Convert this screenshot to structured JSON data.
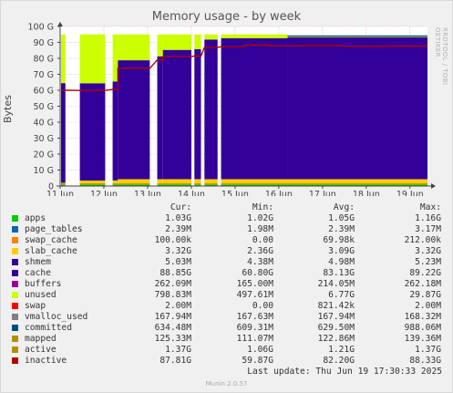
{
  "chart_data": {
    "type": "area",
    "title": "Memory usage - by week",
    "ylabel": "Bytes",
    "ylim": [
      0,
      100
    ],
    "yticks": [
      0,
      10,
      20,
      30,
      40,
      50,
      60,
      70,
      80,
      90,
      100
    ],
    "ytick_labels": [
      "0",
      "10 G",
      "20 G",
      "30 G",
      "40 G",
      "50 G",
      "60 G",
      "70 G",
      "80 G",
      "90 G",
      "100 G"
    ],
    "xlim": [
      0,
      8.4
    ],
    "xticks": [
      0,
      1,
      2,
      3,
      4,
      5,
      6,
      7,
      8
    ],
    "xtick_labels": [
      "11 Jun",
      "12 Jun",
      "13 Jun",
      "14 Jun",
      "15 Jun",
      "16 Jun",
      "17 Jun",
      "18 Jun",
      "19 Jun"
    ],
    "grid": true,
    "segments": [
      {
        "start": -0.1,
        "end": 0.12,
        "apps": 1.0,
        "slab": 1.0,
        "cache": 62.5,
        "unused": 30.5
      },
      {
        "start": 0.45,
        "end": 1.03,
        "apps": 1.0,
        "slab": 2.4,
        "cache": 61.0,
        "unused": 30.6
      },
      {
        "start": 1.2,
        "end": 1.32,
        "apps": 1.0,
        "slab": 2.5,
        "cache": 62.0,
        "unused": 29.5
      },
      {
        "start": 1.32,
        "end": 2.05,
        "apps": 1.0,
        "slab": 3.3,
        "cache": 74.5,
        "unused": 16.2
      },
      {
        "start": 2.22,
        "end": 2.35,
        "apps": 1.0,
        "slab": 3.3,
        "cache": 77.0,
        "unused": 13.7
      },
      {
        "start": 2.35,
        "end": 3.0,
        "apps": 1.0,
        "slab": 3.3,
        "cache": 81.0,
        "unused": 9.7
      },
      {
        "start": 3.07,
        "end": 3.22,
        "apps": 1.0,
        "slab": 3.3,
        "cache": 81.5,
        "unused": 9.2
      },
      {
        "start": 3.3,
        "end": 3.6,
        "apps": 1.0,
        "slab": 3.3,
        "cache": 87.5,
        "unused": 3.2
      },
      {
        "start": 3.68,
        "end": 5.2,
        "apps": 1.0,
        "slab": 3.3,
        "cache": 88.3,
        "unused": 2.4
      },
      {
        "start": 5.2,
        "end": 8.4,
        "apps": 1.0,
        "slab": 3.3,
        "cache": 89.0,
        "unused": 1.0
      }
    ],
    "series": [
      {
        "name": "apps",
        "color": "#00cc00",
        "cur": "1.03G",
        "min": "1.02G",
        "avg": "1.05G",
        "max": "1.16G"
      },
      {
        "name": "page_tables",
        "color": "#0066b3",
        "cur": "2.39M",
        "min": "1.98M",
        "avg": "2.39M",
        "max": "3.17M"
      },
      {
        "name": "swap_cache",
        "color": "#ff8000",
        "cur": "100.00k",
        "min": "0.00",
        "avg": "69.98k",
        "max": "212.00k"
      },
      {
        "name": "slab_cache",
        "color": "#ffcc00",
        "cur": "3.32G",
        "min": "2.36G",
        "avg": "3.09G",
        "max": "3.32G"
      },
      {
        "name": "shmem",
        "color": "#330099",
        "cur": "5.03M",
        "min": "4.38M",
        "avg": "4.98M",
        "max": "5.23M"
      },
      {
        "name": "cache",
        "color": "#330099",
        "cur": "88.85G",
        "min": "60.80G",
        "avg": "83.13G",
        "max": "89.22G"
      },
      {
        "name": "buffers",
        "color": "#990099",
        "cur": "262.09M",
        "min": "165.00M",
        "avg": "214.05M",
        "max": "262.18M"
      },
      {
        "name": "unused",
        "color": "#ccff00",
        "cur": "798.83M",
        "min": "497.61M",
        "avg": "6.77G",
        "max": "29.87G"
      },
      {
        "name": "swap",
        "color": "#ff0000",
        "cur": "2.00M",
        "min": "0.00",
        "avg": "821.42k",
        "max": "2.00M"
      },
      {
        "name": "vmalloc_used",
        "color": "#808080",
        "cur": "167.94M",
        "min": "167.63M",
        "avg": "167.94M",
        "max": "168.32M"
      },
      {
        "name": "committed",
        "color": "#004d80",
        "cur": "634.48M",
        "min": "609.31M",
        "avg": "629.50M",
        "max": "988.06M"
      },
      {
        "name": "mapped",
        "color": "#b38f00",
        "cur": "125.33M",
        "min": "111.07M",
        "avg": "122.86M",
        "max": "139.36M"
      },
      {
        "name": "active",
        "color": "#b38f00",
        "cur": "1.37G",
        "min": "1.06G",
        "avg": "1.21G",
        "max": "1.37G"
      },
      {
        "name": "inactive",
        "color": "#b30000",
        "cur": "87.81G",
        "min": "59.87G",
        "avg": "82.20G",
        "max": "88.33G"
      }
    ],
    "inactive_line": [
      {
        "x": -0.1,
        "y": 60
      },
      {
        "x": 0.12,
        "y": 60
      },
      {
        "x": 0.45,
        "y": 59.9
      },
      {
        "x": 1.03,
        "y": 59.9
      },
      {
        "x": 1.2,
        "y": 60.5
      },
      {
        "x": 1.32,
        "y": 60.5
      },
      {
        "x": 1.32,
        "y": 73.8
      },
      {
        "x": 2.05,
        "y": 73.8
      },
      {
        "x": 2.22,
        "y": 79
      },
      {
        "x": 2.35,
        "y": 79
      },
      {
        "x": 2.35,
        "y": 81.2
      },
      {
        "x": 3.0,
        "y": 81.2
      },
      {
        "x": 3.07,
        "y": 81.4
      },
      {
        "x": 3.22,
        "y": 81.4
      },
      {
        "x": 3.3,
        "y": 86.8
      },
      {
        "x": 3.6,
        "y": 86.8
      },
      {
        "x": 3.68,
        "y": 87.3
      },
      {
        "x": 4.2,
        "y": 87.3
      },
      {
        "x": 4.2,
        "y": 88.3
      },
      {
        "x": 4.8,
        "y": 88.3
      },
      {
        "x": 4.8,
        "y": 87.8
      },
      {
        "x": 5.5,
        "y": 87.8
      },
      {
        "x": 5.5,
        "y": 88.0
      },
      {
        "x": 6.5,
        "y": 88.0
      },
      {
        "x": 6.5,
        "y": 87.6
      },
      {
        "x": 8.4,
        "y": 87.7
      }
    ],
    "committed_line": [
      {
        "x": 5.2,
        "y": 94.0
      },
      {
        "x": 8.4,
        "y": 94.0
      }
    ]
  },
  "legend": {
    "headers": {
      "cur": "Cur:",
      "min": "Min:",
      "avg": "Avg:",
      "max": "Max:"
    }
  },
  "watermark": "RRDTOOL / TOBI OETIKER",
  "last_update": "Last update: Thu Jun 19 17:30:33 2025",
  "footer": "Munin 2.0.57"
}
